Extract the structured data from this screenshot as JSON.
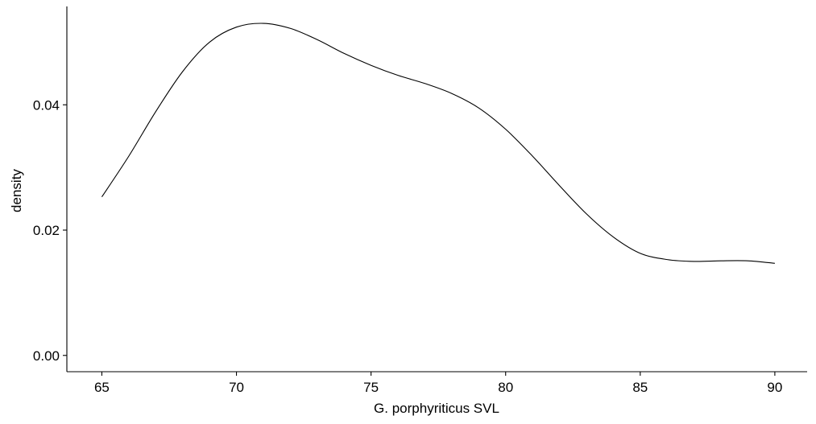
{
  "chart_data": {
    "type": "line",
    "title": "",
    "xlabel": "G. porphyriticus SVL",
    "ylabel": "density",
    "xlim": [
      63.7,
      91.2
    ],
    "ylim": [
      -0.0026,
      0.0557
    ],
    "xticks": [
      65,
      70,
      75,
      80,
      85,
      90
    ],
    "xtick_labels": [
      "65",
      "70",
      "75",
      "80",
      "85",
      "90"
    ],
    "yticks": [
      0.0,
      0.02,
      0.04
    ],
    "ytick_labels": [
      "0.00",
      "0.02",
      "0.04"
    ],
    "grid": false,
    "legend": "none",
    "line_color": "#000000",
    "series": [
      {
        "x": [
          65,
          66,
          67,
          68,
          69,
          70,
          71,
          72,
          73,
          74,
          75,
          76,
          77,
          78,
          79,
          80,
          81,
          82,
          83,
          84,
          85,
          86,
          87,
          88,
          89,
          90
        ],
        "y": [
          0.0253,
          0.0318,
          0.0389,
          0.0453,
          0.05,
          0.0524,
          0.053,
          0.0522,
          0.0504,
          0.0482,
          0.0463,
          0.0447,
          0.0434,
          0.0418,
          0.0395,
          0.0361,
          0.0318,
          0.0271,
          0.0226,
          0.0189,
          0.0163,
          0.0153,
          0.015,
          0.0151,
          0.0151,
          0.0147
        ]
      }
    ]
  }
}
